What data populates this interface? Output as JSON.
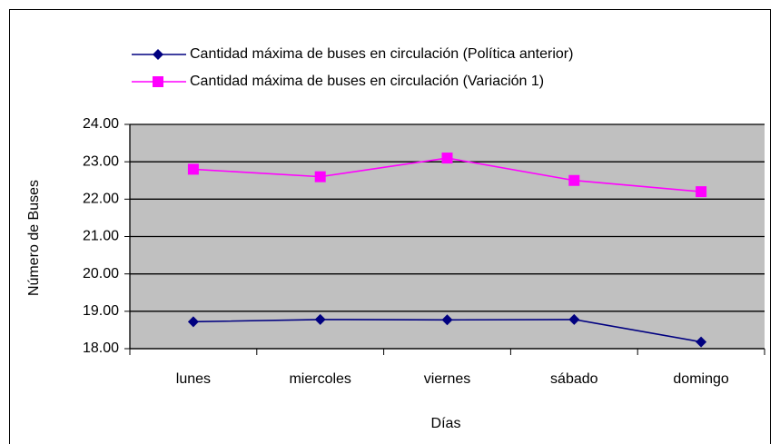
{
  "chart_data": {
    "type": "line",
    "categories": [
      "lunes",
      "miercoles",
      "viernes",
      "sábado",
      "domingo"
    ],
    "series": [
      {
        "name": "Cantidad máxima de buses en circulación (Política anterior)",
        "color": "#000080",
        "marker": "diamond",
        "values": [
          18.72,
          18.78,
          18.77,
          18.78,
          18.18
        ]
      },
      {
        "name": "Cantidad máxima de buses en circulación (Variación 1)",
        "color": "#ff00ff",
        "marker": "square",
        "values": [
          22.8,
          22.6,
          23.1,
          22.5,
          22.2
        ]
      }
    ],
    "xlabel": "Días",
    "ylabel": "Número de Buses",
    "ylim": [
      18,
      24
    ],
    "yticks": [
      {
        "value": 18,
        "label": "18.00"
      },
      {
        "value": 19,
        "label": "19.00"
      },
      {
        "value": 20,
        "label": "20.00"
      },
      {
        "value": 21,
        "label": "21.00"
      },
      {
        "value": 22,
        "label": "22.00"
      },
      {
        "value": 23,
        "label": "23.00"
      },
      {
        "value": 24,
        "label": "24.00"
      }
    ],
    "grid": true,
    "plot_background": "#c0c0c0"
  }
}
